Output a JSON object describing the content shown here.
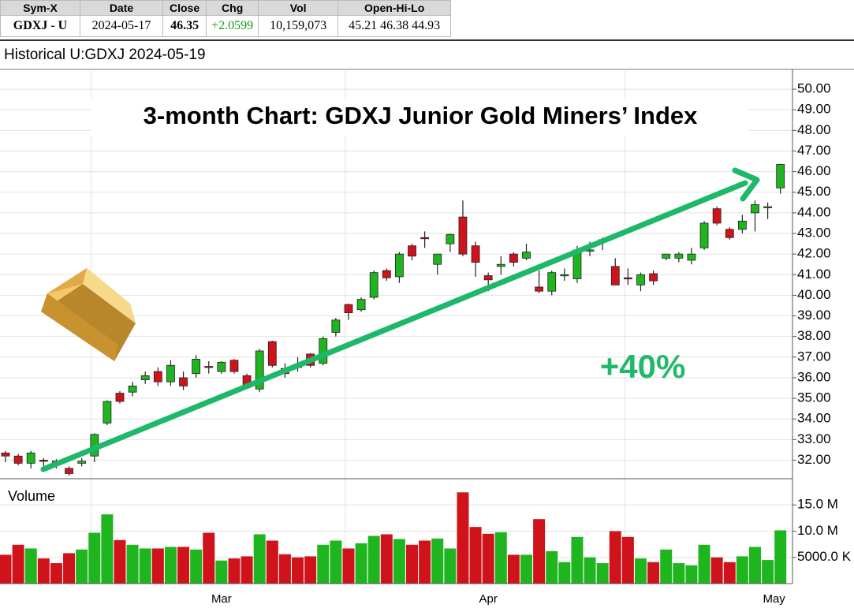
{
  "quote_table": {
    "headers": [
      "Sym-X",
      "Date",
      "Close",
      "Chg",
      "Vol",
      "Open-Hi-Lo"
    ],
    "row": [
      "GDXJ - U",
      "2024-05-17",
      "46.35",
      "+2.0599",
      "10,159,073",
      "45.21 46.38 44.93"
    ]
  },
  "panel_title": "Historical U:GDXJ 2024-05-19",
  "chart_data": [
    {
      "type": "candlestick",
      "title": "3-month Chart: GDXJ  Junior Gold Miners’ Index",
      "annotation": "+40%",
      "up_color": "#1fb51f",
      "down_color": "#d0121b",
      "open": [
        32.35,
        32.2,
        31.85,
        32.0,
        31.95,
        31.6,
        31.85,
        32.2,
        33.8,
        35.25,
        35.3,
        35.9,
        36.3,
        35.8,
        36.0,
        36.2,
        36.55,
        36.3,
        36.85,
        36.1,
        35.45,
        37.75,
        36.45,
        36.55,
        37.15,
        36.7,
        38.2,
        39.55,
        39.3,
        39.9,
        41.2,
        40.9,
        42.4,
        42.8,
        41.5,
        42.5,
        43.8,
        42.4,
        40.95,
        41.4,
        42.0,
        41.8,
        40.4,
        40.2,
        40.95,
        40.8,
        42.15,
        42.65,
        41.4,
        40.85,
        40.5,
        41.05,
        41.8,
        41.8,
        41.7,
        42.3,
        44.2,
        43.2,
        43.2,
        44.0,
        44.3,
        45.21
      ],
      "high": [
        32.45,
        32.3,
        32.45,
        32.1,
        32.05,
        31.7,
        32.1,
        33.3,
        34.9,
        35.35,
        35.8,
        36.3,
        36.5,
        36.85,
        36.3,
        37.1,
        36.8,
        36.8,
        36.9,
        36.2,
        37.4,
        37.8,
        36.7,
        37.0,
        37.2,
        38.0,
        38.9,
        39.6,
        39.9,
        41.2,
        41.3,
        42.1,
        42.5,
        43.1,
        42.0,
        43.0,
        44.6,
        42.6,
        41.1,
        41.9,
        42.1,
        42.5,
        41.2,
        41.2,
        41.3,
        42.4,
        42.6,
        42.8,
        41.8,
        41.3,
        41.1,
        41.2,
        42.0,
        42.1,
        42.3,
        43.6,
        44.3,
        43.3,
        43.9,
        44.6,
        44.5,
        46.38
      ],
      "low": [
        31.9,
        31.75,
        31.6,
        31.7,
        31.6,
        31.25,
        31.7,
        31.9,
        33.7,
        34.75,
        35.1,
        35.7,
        35.6,
        35.6,
        35.4,
        36.0,
        36.2,
        36.2,
        36.2,
        35.5,
        35.3,
        36.5,
        36.0,
        36.3,
        36.5,
        36.6,
        38.0,
        38.8,
        39.2,
        39.8,
        40.7,
        40.6,
        41.7,
        42.3,
        41.0,
        42.1,
        41.9,
        40.9,
        40.2,
        41.0,
        41.4,
        41.7,
        40.1,
        40.0,
        40.7,
        40.6,
        41.9,
        42.2,
        40.5,
        40.5,
        40.2,
        40.5,
        41.7,
        41.6,
        41.5,
        42.2,
        43.4,
        42.7,
        43.0,
        43.1,
        43.7,
        44.93
      ],
      "close": [
        32.2,
        31.85,
        32.35,
        31.95,
        31.9,
        31.35,
        31.95,
        33.25,
        34.85,
        34.85,
        35.6,
        36.1,
        35.8,
        36.6,
        35.6,
        36.9,
        36.5,
        36.75,
        36.3,
        35.6,
        37.3,
        36.6,
        36.2,
        36.5,
        36.6,
        37.9,
        38.8,
        39.15,
        39.8,
        41.1,
        40.85,
        42.0,
        41.9,
        42.75,
        42.0,
        42.95,
        42.0,
        41.6,
        40.75,
        41.5,
        41.6,
        42.1,
        40.2,
        41.1,
        41.0,
        42.2,
        42.2,
        42.7,
        40.5,
        40.8,
        41.0,
        40.7,
        42.0,
        42.0,
        42.0,
        43.5,
        43.5,
        42.8,
        43.6,
        44.4,
        44.3,
        46.35
      ],
      "ylim": [
        31.1,
        50.96
      ],
      "yticks": [
        {
          "value": 32,
          "label": "32.00"
        },
        {
          "value": 33,
          "label": "33.00"
        },
        {
          "value": 34,
          "label": "34.00"
        },
        {
          "value": 35,
          "label": "35.00"
        },
        {
          "value": 36,
          "label": "36.00"
        },
        {
          "value": 37,
          "label": "37.00"
        },
        {
          "value": 38,
          "label": "38.00"
        },
        {
          "value": 39,
          "label": "39.00"
        },
        {
          "value": 40,
          "label": "40.00"
        },
        {
          "value": 41,
          "label": "41.00"
        },
        {
          "value": 42,
          "label": "42.00"
        },
        {
          "value": 43,
          "label": "43.00"
        },
        {
          "value": 44,
          "label": "44.00"
        },
        {
          "value": 45,
          "label": "45.00"
        },
        {
          "value": 46,
          "label": "46.00"
        },
        {
          "value": 47,
          "label": "47.00"
        },
        {
          "value": 48,
          "label": "48.00"
        },
        {
          "value": 49,
          "label": "49.00"
        },
        {
          "value": 50,
          "label": "50.00"
        }
      ],
      "grid": true
    },
    {
      "type": "bar",
      "title": "Volume",
      "categories": [
        null,
        null,
        null,
        null,
        null,
        null,
        null,
        "Mar",
        null,
        null,
        null,
        null,
        null,
        null,
        null,
        null,
        null,
        null,
        null,
        null,
        null,
        null,
        null,
        null,
        null,
        null,
        null,
        "Apr",
        null,
        null,
        null,
        null,
        null,
        null,
        null,
        null,
        null,
        null,
        null,
        null,
        null,
        null,
        null,
        null,
        null,
        null,
        null,
        null,
        null,
        "May",
        null,
        null,
        null,
        null,
        null,
        null,
        null,
        null,
        null,
        null,
        null,
        null
      ],
      "values": [
        5500000,
        7400000,
        6700000,
        4800000,
        3900000,
        5800000,
        6500000,
        9700000,
        13200000,
        8300000,
        7400000,
        6700000,
        6700000,
        7000000,
        7000000,
        6500000,
        9700000,
        4400000,
        4800000,
        5200000,
        9400000,
        8200000,
        5600000,
        5000000,
        5200000,
        7400000,
        8200000,
        6700000,
        7700000,
        9100000,
        9400000,
        8500000,
        7400000,
        8200000,
        8600000,
        6700000,
        17400000,
        10800000,
        9500000,
        9800000,
        5500000,
        5500000,
        12300000,
        6200000,
        4100000,
        8900000,
        5000000,
        3900000,
        10000000,
        8900000,
        4800000,
        4100000,
        6500000,
        3900000,
        3500000,
        7400000,
        5000000,
        4100000,
        5200000,
        7000000,
        4500000,
        10159073
      ],
      "ylim": [
        0,
        20000000
      ],
      "yticks": [
        {
          "value": 5000000,
          "label": "5000.0 K"
        },
        {
          "value": 10000000,
          "label": "10.0 M"
        },
        {
          "value": 15000000,
          "label": "15.0 M"
        }
      ],
      "grid": true
    }
  ]
}
